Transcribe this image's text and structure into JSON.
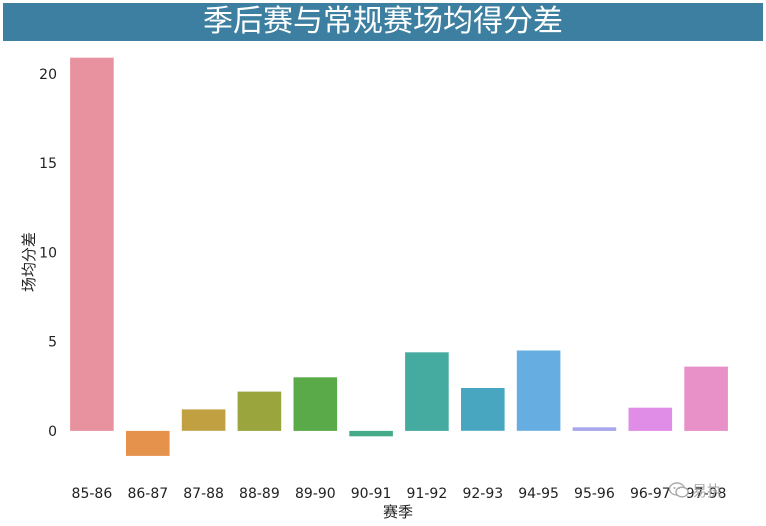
{
  "title": "季后赛与常规赛场均得分差",
  "chart_data": {
    "type": "bar",
    "title": "季后赛与常规赛场均得分差",
    "xlabel": "赛季",
    "ylabel": "场均分差",
    "categories": [
      "85-86",
      "86-87",
      "87-88",
      "88-89",
      "89-90",
      "90-91",
      "91-92",
      "92-93",
      "94-95",
      "95-96",
      "96-97",
      "97-98"
    ],
    "values": [
      20.9,
      -1.4,
      1.2,
      2.2,
      3.0,
      -0.3,
      4.4,
      2.4,
      4.5,
      0.2,
      1.3,
      3.6
    ],
    "colors": [
      "#e8929f",
      "#e5924d",
      "#c0a040",
      "#9ba53e",
      "#5aaa4a",
      "#44aa88",
      "#45aaa0",
      "#48a6c0",
      "#66aee2",
      "#a9a7ec",
      "#e08de8",
      "#e890c8"
    ],
    "ylim": [
      -1.8,
      21.5
    ],
    "yticks": [
      0,
      5,
      10,
      15,
      20
    ],
    "grid": false
  },
  "watermark": "易执"
}
